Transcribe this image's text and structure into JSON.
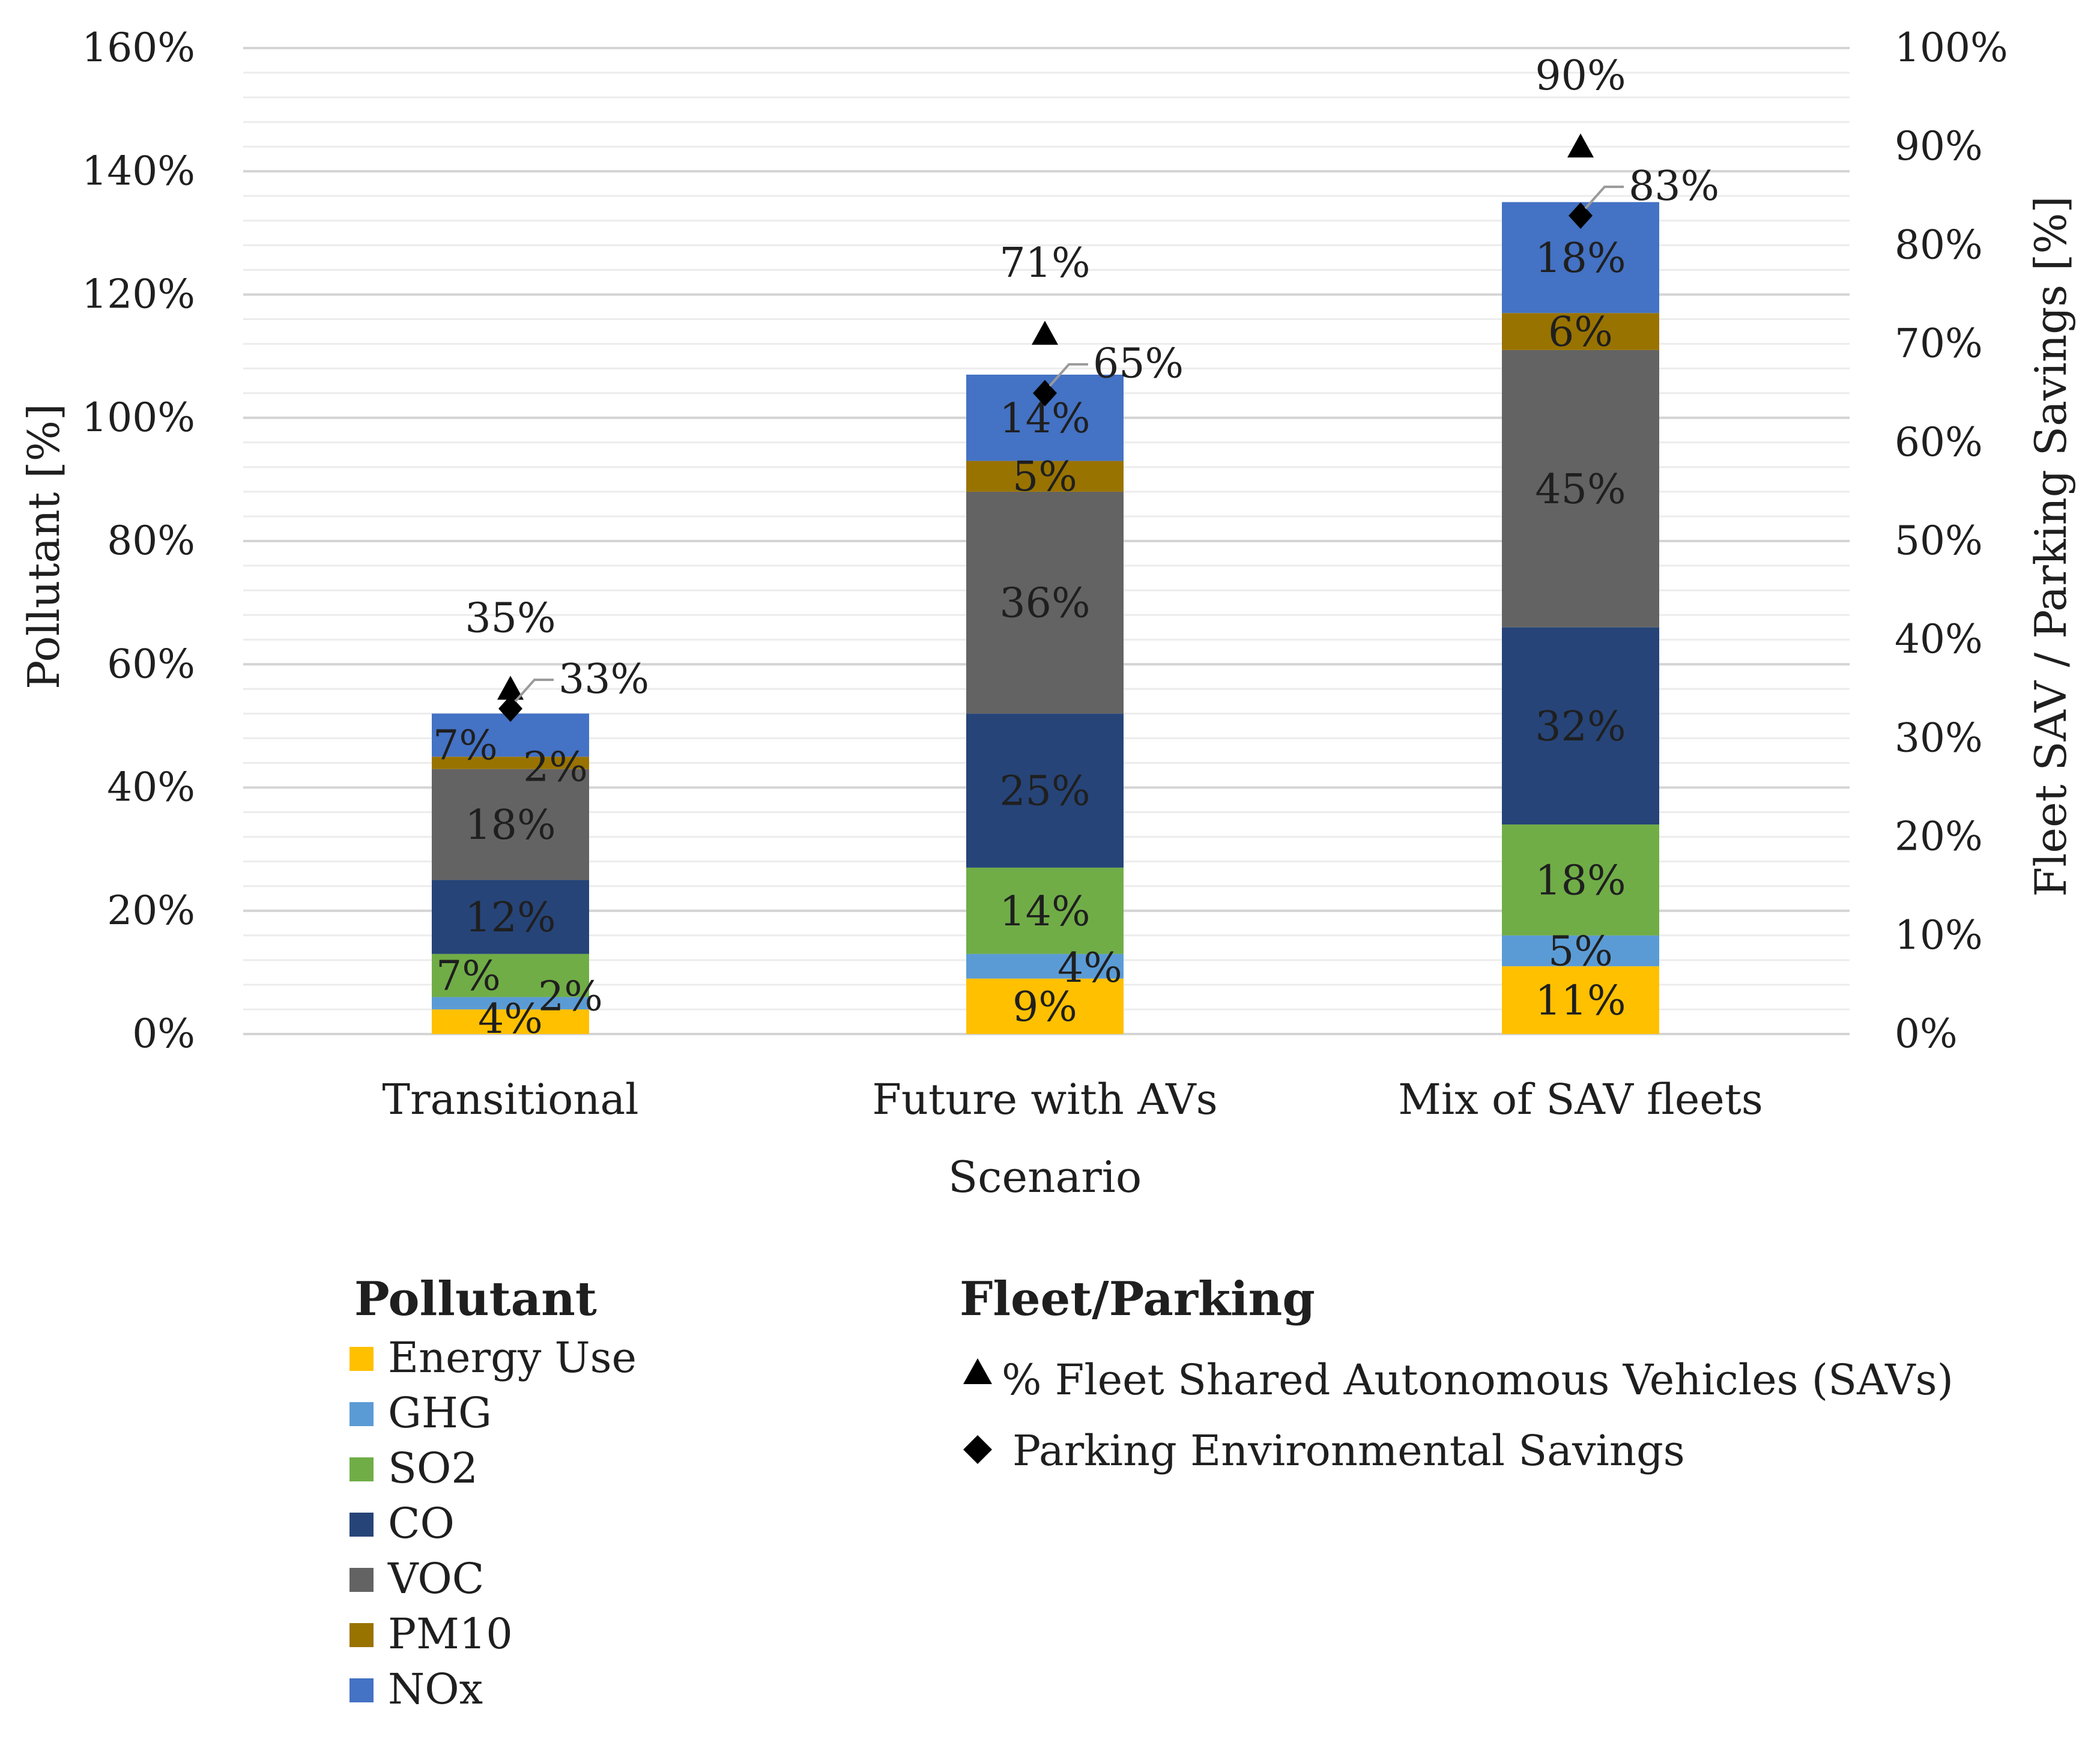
{
  "chart_data": {
    "type": "bar",
    "stacked": true,
    "xlabel": "Scenario",
    "ylabel": "Pollutant [%]",
    "y2label": "Fleet SAV / Parking Savings [%]",
    "ylim": [
      0,
      160
    ],
    "y2lim": [
      0,
      100
    ],
    "y_ticks": [
      "0%",
      "20%",
      "40%",
      "60%",
      "80%",
      "100%",
      "120%",
      "140%",
      "160%"
    ],
    "y2_ticks": [
      "0%",
      "10%",
      "20%",
      "30%",
      "40%",
      "50%",
      "60%",
      "70%",
      "80%",
      "90%",
      "100%"
    ],
    "categories": [
      "Transitional",
      "Future with AVs",
      "Mix of SAV fleets"
    ],
    "series": [
      {
        "name": "Energy Use",
        "color": "#ffc000",
        "values": [
          4,
          9,
          11
        ],
        "labels": [
          "4%",
          "9%",
          "11%"
        ]
      },
      {
        "name": "GHG",
        "color": "#5b9bd5",
        "values": [
          2,
          4,
          5
        ],
        "labels": [
          "2%",
          "4%",
          "5%"
        ]
      },
      {
        "name": "SO2",
        "color": "#70ad47",
        "values": [
          7,
          14,
          18
        ],
        "labels": [
          "7%",
          "14%",
          "18%"
        ]
      },
      {
        "name": "CO",
        "color": "#264478",
        "values": [
          12,
          25,
          32
        ],
        "labels": [
          "12%",
          "25%",
          "32%"
        ]
      },
      {
        "name": "VOC",
        "color": "#636363",
        "values": [
          18,
          36,
          45
        ],
        "labels": [
          "18%",
          "36%",
          "45%"
        ]
      },
      {
        "name": "PM10",
        "color": "#997300",
        "values": [
          2,
          5,
          6
        ],
        "labels": [
          "2%",
          "5%",
          "6%"
        ]
      },
      {
        "name": "NOx",
        "color": "#4472c4",
        "values": [
          7,
          14,
          18
        ],
        "labels": [
          "7%",
          "14%",
          "18%"
        ]
      }
    ],
    "markers": [
      {
        "name": "% Fleet Shared Autonomous Vehicles (SAVs)",
        "shape": "triangle",
        "axis": "secondary",
        "values": [
          35,
          71,
          90
        ],
        "labels": [
          "35%",
          "71%",
          "90%"
        ]
      },
      {
        "name": "Parking Environmental Savings",
        "shape": "diamond",
        "axis": "secondary",
        "values": [
          33,
          65,
          83
        ],
        "labels": [
          "33%",
          "65%",
          "83%"
        ]
      }
    ],
    "legend": {
      "pollutant_title": "Pollutant",
      "fleet_title": "Fleet/Parking",
      "placement": "bottom"
    }
  }
}
